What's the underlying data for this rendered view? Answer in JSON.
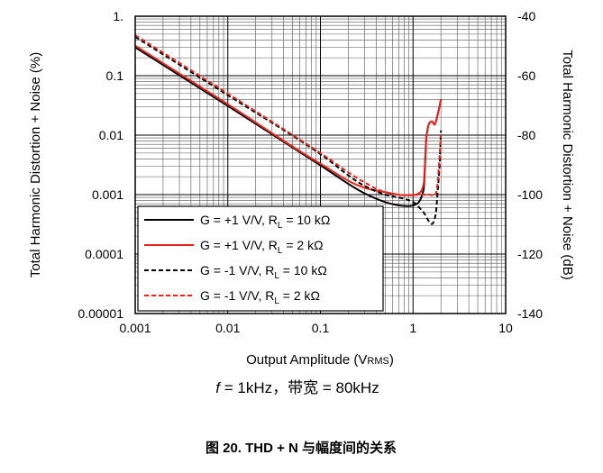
{
  "chart_data": {
    "type": "line",
    "x_scale": "log",
    "y_scale": "log",
    "xlim": [
      0.001,
      10
    ],
    "ylim": [
      1e-05,
      1
    ],
    "y2lim": [
      -140,
      -40
    ],
    "grid": true,
    "legend_position": "bottom-left",
    "xlabel": {
      "main": "Output Amplitude (V",
      "sub": "RMS",
      "end": ")"
    },
    "ylabel": "Total Harmonic Distortion + Noise (%)",
    "y2label": "Total Harmonic Distortion + Noise (dB)",
    "x_ticks": [
      "0.001",
      "0.01",
      "0.1",
      "1",
      "10"
    ],
    "y_ticks": [
      "0.00001",
      "0.0001",
      "0.001",
      "0.01",
      "0.1",
      "1."
    ],
    "y2_ticks": [
      "-140",
      "-120",
      "-100",
      "-80",
      "-60",
      "-40"
    ],
    "series": [
      {
        "label": "G = +1 V/V, R",
        "label_sub": "L",
        "label_end": " = 10 kΩ",
        "color": "#000000",
        "dash": false,
        "points": [
          [
            0.001,
            0.3
          ],
          [
            0.01,
            0.031
          ],
          [
            0.1,
            0.0031
          ],
          [
            0.3,
            0.00105
          ],
          [
            0.5,
            0.00075
          ],
          [
            0.7,
            0.00066
          ],
          [
            0.9,
            0.00064
          ],
          [
            1.1,
            0.0007
          ],
          [
            1.3,
            0.0012
          ],
          [
            1.4,
            0.01
          ],
          [
            1.5,
            0.016
          ],
          [
            1.6,
            0.017
          ],
          [
            1.7,
            0.015
          ],
          [
            1.8,
            0.019
          ],
          [
            1.9,
            0.027
          ],
          [
            2.0,
            0.04
          ]
        ]
      },
      {
        "label": "G = +1 V/V, R",
        "label_sub": "L",
        "label_end": " = 2 kΩ",
        "color": "#e8231b",
        "dash": false,
        "points": [
          [
            0.001,
            0.32
          ],
          [
            0.01,
            0.033
          ],
          [
            0.1,
            0.0033
          ],
          [
            0.3,
            0.0013
          ],
          [
            0.5,
            0.0011
          ],
          [
            0.8,
            0.00098
          ],
          [
            1.0,
            0.00098
          ],
          [
            1.2,
            0.0011
          ],
          [
            1.3,
            0.0015
          ],
          [
            1.4,
            0.01
          ],
          [
            1.5,
            0.016
          ],
          [
            1.6,
            0.017
          ],
          [
            1.7,
            0.015
          ],
          [
            1.8,
            0.019
          ],
          [
            1.9,
            0.027
          ],
          [
            2.0,
            0.04
          ]
        ]
      },
      {
        "label": "G = -1 V/V, R",
        "label_sub": "L",
        "label_end": " = 10 kΩ",
        "color": "#000000",
        "dash": true,
        "points": [
          [
            0.001,
            0.45
          ],
          [
            0.01,
            0.047
          ],
          [
            0.1,
            0.0048
          ],
          [
            0.3,
            0.0014
          ],
          [
            0.5,
            0.001
          ],
          [
            0.8,
            0.00085
          ],
          [
            1.0,
            0.00075
          ],
          [
            1.3,
            0.0005
          ],
          [
            1.6,
            0.00032
          ],
          [
            1.75,
            0.00045
          ],
          [
            1.85,
            0.0012
          ],
          [
            1.95,
            0.004
          ],
          [
            2.0,
            0.012
          ]
        ]
      },
      {
        "label": "G = -1 V/V, R",
        "label_sub": "L",
        "label_end": " = 2 kΩ",
        "color": "#e8231b",
        "dash": true,
        "points": [
          [
            0.001,
            0.48
          ],
          [
            0.01,
            0.05
          ],
          [
            0.1,
            0.005
          ],
          [
            0.3,
            0.0016
          ],
          [
            0.5,
            0.0011
          ],
          [
            0.8,
            0.00098
          ],
          [
            1.2,
            0.001
          ],
          [
            1.5,
            0.001
          ],
          [
            1.7,
            0.00095
          ],
          [
            1.8,
            0.0012
          ],
          [
            1.9,
            0.003
          ],
          [
            2.0,
            0.01
          ]
        ]
      }
    ]
  },
  "conditions": {
    "f_symbol": "f",
    "text": " = 1kHz，带宽 = 80kHz"
  },
  "caption": "图 20. THD + N 与幅度间的关系"
}
